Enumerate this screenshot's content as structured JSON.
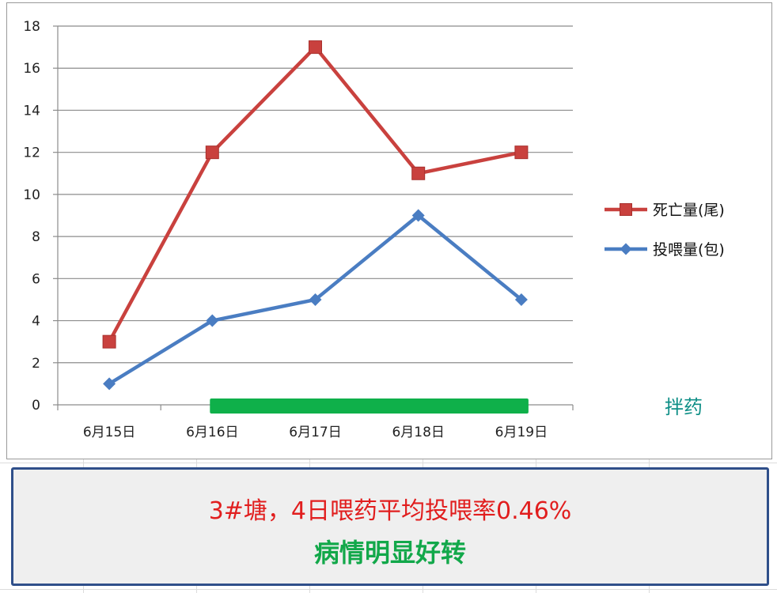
{
  "colors": {
    "death_series": "#c9413e",
    "feed_series": "#4a7dc2",
    "medication_bar": "#0fb04a",
    "annotation_text": "#0f8f87",
    "info_line_1": "#e11e1e",
    "info_line_2": "#12a84a",
    "info_border": "#2f4f8a"
  },
  "chart_data": {
    "type": "line",
    "categories": [
      "6月15日",
      "6月16日",
      "6月17日",
      "6月18日",
      "6月19日"
    ],
    "ylim": [
      0,
      18
    ],
    "yticks": [
      0,
      2,
      4,
      6,
      8,
      10,
      12,
      14,
      16,
      18
    ],
    "grid": true,
    "legend_position": "right",
    "series": [
      {
        "name": "死亡量(尾)",
        "values": [
          3,
          12,
          17,
          11,
          12
        ],
        "marker": "square"
      },
      {
        "name": "投喂量(包)",
        "values": [
          1,
          4,
          5,
          9,
          5
        ],
        "marker": "diamond"
      }
    ],
    "annotation": {
      "label": "拌药",
      "range_start": "6月16日",
      "range_end": "6月19日"
    }
  },
  "info": {
    "line_1": "3#塘，4日喂药平均投喂率0.46%",
    "line_2": "病情明显好转"
  }
}
